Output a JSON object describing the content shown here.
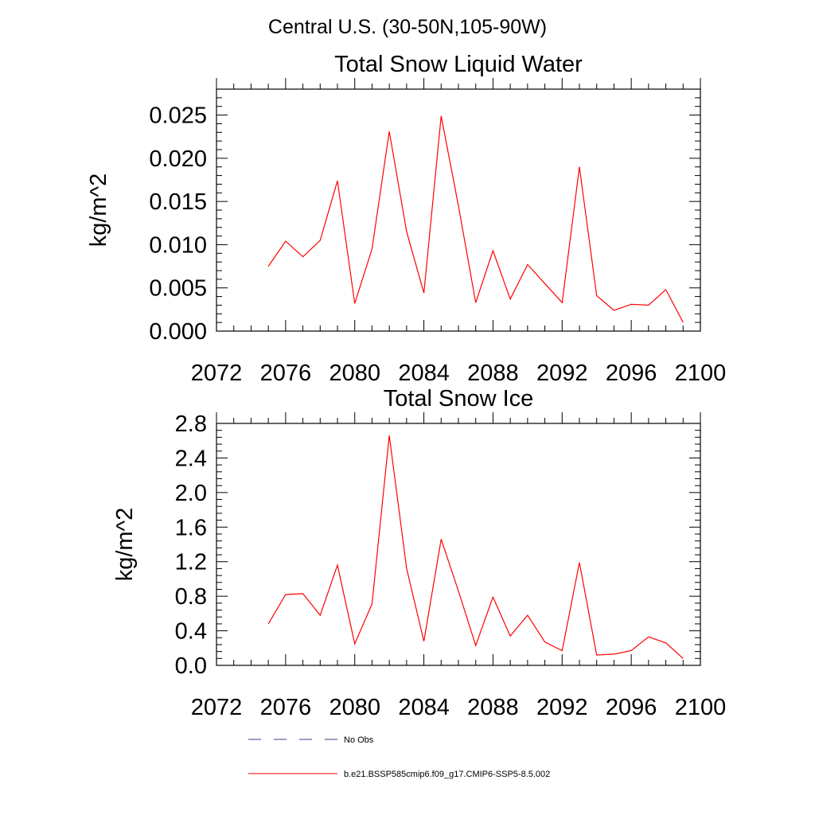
{
  "figure": {
    "suptitle": "Central U.S. (30-50N,105-90W)"
  },
  "colors": {
    "axes": "#000000",
    "model_line": "#ff0000",
    "obs_line": "#3b3b8f"
  },
  "chart_data": [
    {
      "type": "line",
      "title": "Total Snow Liquid Water",
      "xlabel": "",
      "ylabel": "kg/m^2",
      "xlim": [
        2072,
        2100
      ],
      "ylim": [
        0.0,
        0.028
      ],
      "xticks": [
        2072,
        2076,
        2080,
        2084,
        2088,
        2092,
        2096,
        2100
      ],
      "xtick_labels": [
        "2072",
        "2076",
        "2080",
        "2084",
        "2088",
        "2092",
        "2096",
        "2100"
      ],
      "yticks": [
        0.0,
        0.005,
        0.01,
        0.015,
        0.02,
        0.025
      ],
      "ytick_labels": [
        "0.000",
        "0.005",
        "0.010",
        "0.015",
        "0.020",
        "0.025"
      ],
      "grid": false,
      "series": [
        {
          "name": "b.e21.BSSP585cmip6.f09_g17.CMIP6-SSP5-8.5.002",
          "x": [
            2075,
            2076,
            2077,
            2078,
            2079,
            2080,
            2081,
            2082,
            2083,
            2084,
            2085,
            2086,
            2087,
            2088,
            2089,
            2090,
            2091,
            2092,
            2093,
            2094,
            2095,
            2096,
            2097,
            2098,
            2099
          ],
          "y": [
            0.0075,
            0.0104,
            0.0086,
            0.0105,
            0.0174,
            0.0032,
            0.0095,
            0.0231,
            0.0115,
            0.0044,
            0.0249,
            0.0145,
            0.0033,
            0.0093,
            0.0037,
            0.0077,
            0.0055,
            0.0033,
            0.019,
            0.0041,
            0.0024,
            0.0031,
            0.003,
            0.0048,
            0.001
          ]
        }
      ]
    },
    {
      "type": "line",
      "title": "Total Snow Ice",
      "xlabel": "",
      "ylabel": "kg/m^2",
      "xlim": [
        2072,
        2100
      ],
      "ylim": [
        0.0,
        2.8
      ],
      "xticks": [
        2072,
        2076,
        2080,
        2084,
        2088,
        2092,
        2096,
        2100
      ],
      "xtick_labels": [
        "2072",
        "2076",
        "2080",
        "2084",
        "2088",
        "2092",
        "2096",
        "2100"
      ],
      "yticks": [
        0.0,
        0.4,
        0.8,
        1.2,
        1.6,
        2.0,
        2.4,
        2.8
      ],
      "ytick_labels": [
        "0.0",
        "0.4",
        "0.8",
        "1.2",
        "1.6",
        "2.0",
        "2.4",
        "2.8"
      ],
      "grid": false,
      "series": [
        {
          "name": "b.e21.BSSP585cmip6.f09_g17.CMIP6-SSP5-8.5.002",
          "x": [
            2075,
            2076,
            2077,
            2078,
            2079,
            2080,
            2081,
            2082,
            2083,
            2084,
            2085,
            2086,
            2087,
            2088,
            2089,
            2090,
            2091,
            2092,
            2093,
            2094,
            2095,
            2096,
            2097,
            2098,
            2099
          ],
          "y": [
            0.48,
            0.82,
            0.83,
            0.58,
            1.16,
            0.25,
            0.71,
            2.66,
            1.12,
            0.28,
            1.46,
            0.86,
            0.23,
            0.79,
            0.34,
            0.58,
            0.27,
            0.17,
            1.19,
            0.12,
            0.13,
            0.17,
            0.33,
            0.26,
            0.08
          ]
        }
      ]
    }
  ],
  "legend": {
    "placement": "bottom",
    "entries": [
      {
        "label": "No Obs",
        "style": "dashed",
        "color": "#3b3b8f"
      },
      {
        "label": "b.e21.BSSP585cmip6.f09_g17.CMIP6-SSP5-8.5.002",
        "style": "solid",
        "color": "#ff0000"
      }
    ]
  }
}
